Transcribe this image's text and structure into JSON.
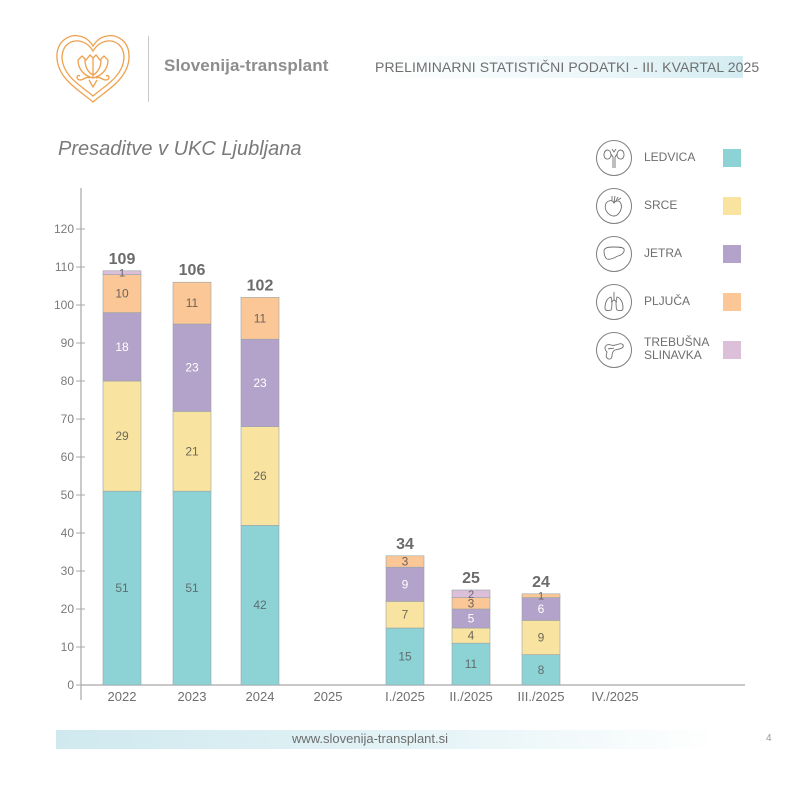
{
  "header": {
    "brand": "Slovenija-transplant",
    "title": "PRELIMINARNI STATISTIČNI PODATKI - III. KVARTAL 2025"
  },
  "legend": {
    "items": [
      {
        "label": "LEDVICA",
        "icon": "kidneys-icon",
        "color": "#8dd2d5"
      },
      {
        "label": "SRCE",
        "icon": "heart-organ-icon",
        "color": "#f8e3a0"
      },
      {
        "label": "JETRA",
        "icon": "liver-icon",
        "color": "#b3a2c9"
      },
      {
        "label": "PLJUČA",
        "icon": "lungs-icon",
        "color": "#fbc796"
      },
      {
        "label": "TREBUŠNA",
        "label2": "SLINAVKA",
        "icon": "pancreas-icon",
        "color": "#dcbfd8"
      }
    ]
  },
  "footer": {
    "url": "www.slovenija-transplant.si",
    "page": "4"
  },
  "chart_data": {
    "type": "bar",
    "stacked": true,
    "title": "Presaditve v UKC Ljubljana",
    "xlabel": "",
    "ylabel": "",
    "ylim": [
      0,
      120
    ],
    "yticks": [
      0,
      10,
      20,
      30,
      40,
      50,
      60,
      70,
      80,
      90,
      100,
      110,
      120
    ],
    "grid": false,
    "legend_position": "top-right",
    "categories": [
      "2022",
      "2023",
      "2024",
      "2025",
      "I./2025",
      "II./2025",
      "III./2025",
      "IV./2025"
    ],
    "totals": [
      109,
      106,
      102,
      null,
      34,
      25,
      24,
      null
    ],
    "series": [
      {
        "name": "LEDVICA",
        "color": "#8dd2d5",
        "label_color": "#5f6e70",
        "values": [
          51,
          51,
          42,
          null,
          15,
          11,
          8,
          null
        ]
      },
      {
        "name": "SRCE",
        "color": "#f8e3a0",
        "label_color": "#6e6a5a",
        "values": [
          29,
          21,
          26,
          null,
          7,
          4,
          9,
          null
        ]
      },
      {
        "name": "JETRA",
        "color": "#b3a2c9",
        "label_color": "#ffffff",
        "values": [
          18,
          23,
          23,
          null,
          9,
          5,
          6,
          null
        ]
      },
      {
        "name": "PLJUČA",
        "color": "#fbc796",
        "label_color": "#6e6258",
        "values": [
          10,
          11,
          11,
          null,
          3,
          3,
          1,
          null
        ]
      },
      {
        "name": "TREBUŠNA SLINAVKA",
        "color": "#dcbfd8",
        "label_color": "#6e6270",
        "values": [
          1,
          0,
          0,
          null,
          0,
          2,
          0,
          null
        ]
      }
    ]
  }
}
